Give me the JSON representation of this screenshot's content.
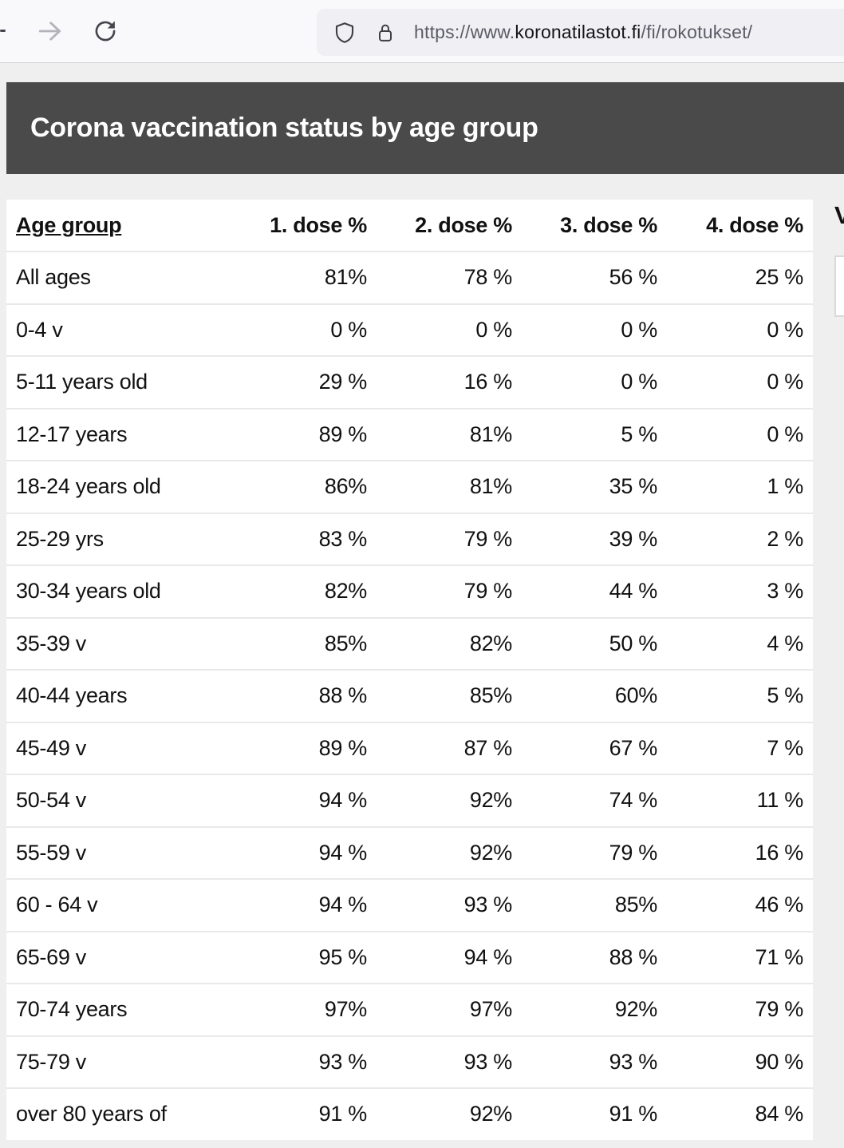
{
  "browser": {
    "url": {
      "prefix": "https://www.",
      "domain": "koronatilastot.fi",
      "path": "/fi/rokotukset/"
    },
    "icons": {
      "back": "back-arrow-cut-off",
      "forward": "forward-arrow",
      "reload": "circular-reload-arrow",
      "shield": "tracking-protection-shield",
      "lock": "https-padlock"
    }
  },
  "page": {
    "title": "Corona vaccination status by age group"
  },
  "side_panel": {
    "heading_fragment": "V"
  },
  "table": {
    "columns": [
      "Age group",
      "1. dose %",
      "2. dose %",
      "3. dose %",
      "4. dose %"
    ],
    "rows": [
      {
        "label": "All ages",
        "values": [
          "81%",
          "78 %",
          "56 %",
          "25 %"
        ]
      },
      {
        "label": "0-4 v",
        "values": [
          "0 %",
          "0 %",
          "0 %",
          "0 %"
        ]
      },
      {
        "label": "5-11 years old",
        "values": [
          "29 %",
          "16 %",
          "0 %",
          "0 %"
        ]
      },
      {
        "label": "12-17 years",
        "values": [
          "89 %",
          "81%",
          "5 %",
          "0 %"
        ]
      },
      {
        "label": "18-24 years old",
        "values": [
          "86%",
          "81%",
          "35 %",
          "1 %"
        ]
      },
      {
        "label": "25-29 yrs",
        "values": [
          "83 %",
          "79 %",
          "39 %",
          "2 %"
        ]
      },
      {
        "label": "30-34 years old",
        "values": [
          "82%",
          "79 %",
          "44 %",
          "3 %"
        ]
      },
      {
        "label": "35-39 v",
        "values": [
          "85%",
          "82%",
          "50 %",
          "4 %"
        ]
      },
      {
        "label": "40-44 years",
        "values": [
          "88 %",
          "85%",
          "60%",
          "5 %"
        ]
      },
      {
        "label": "45-49 v",
        "values": [
          "89 %",
          "87 %",
          "67 %",
          "7 %"
        ]
      },
      {
        "label": "50-54 v",
        "values": [
          "94 %",
          "92%",
          "74 %",
          "11 %"
        ]
      },
      {
        "label": "55-59 v",
        "values": [
          "94 %",
          "92%",
          "79 %",
          "16 %"
        ]
      },
      {
        "label": "60 - 64 v",
        "values": [
          "94 %",
          "93 %",
          "85%",
          "46 %"
        ]
      },
      {
        "label": "65-69 v",
        "values": [
          "95 %",
          "94 %",
          "88 %",
          "71 %"
        ]
      },
      {
        "label": "70-74 years",
        "values": [
          "97%",
          "97%",
          "92%",
          "79 %"
        ]
      },
      {
        "label": "75-79 v",
        "values": [
          "93 %",
          "93 %",
          "93 %",
          "90 %"
        ]
      },
      {
        "label": "over 80 years of",
        "values": [
          "91 %",
          "92%",
          "91 %",
          "84 %"
        ]
      }
    ]
  },
  "colors": {
    "page_header_bg": "#4a4a4a",
    "page_bg": "#efefef",
    "toolbar_bg": "#f9f9fb",
    "urlbar_bg": "#f0f0f4",
    "row_divider": "#e9e9e9"
  }
}
